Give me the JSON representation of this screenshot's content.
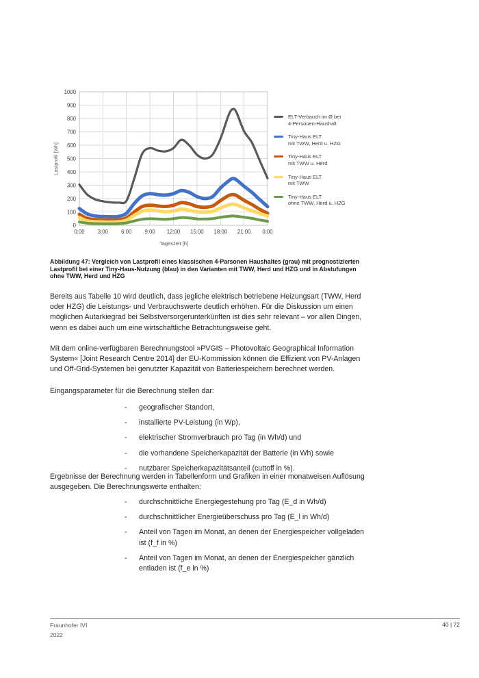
{
  "document": {
    "figure_caption": "Abbildung 47: Vergleich von Lastprofil eines klassischen 4-Parsonen Haushaltes (grau) mit prognostizierten Lastprofil bei einer Tiny-Haus-Nutzung (blau) in den Varianten mit TWW, Herd und HZG und in Abstufungen ohne TWW, Herd und HZG",
    "paragraphs": {
      "p1": "Bereits aus Tabelle 10 wird deutlich, dass jegliche elektrisch betriebene Heizungsart (TWW, Herd oder HZG) die Leistungs- und Verbrauchswerte deutlich erhöhen. Für die Diskussion um einen möglichen Autarkiegrad bei Selbstversorgerunterkünften ist dies sehr relevant – vor allen Dingen, wenn es dabei auch um eine wirtschaftliche Betrachtungsweise geht.",
      "p2": "Mit dem online-verfügbaren Berechnungstool »PVGIS – Photovoltaic Geographical Information System« [Joint Research Centre 2014] der EU-Kommission können die Effizient von PV-Anlagen und Off-Grid-Systemen bei genutzter Kapazität von Batteriespeichern berechnet werden.",
      "p3": "Eingangsparameter für die Berechnung stellen dar:",
      "p4": "Ergebnisse der Berechnung werden in Tabellenform und Grafiken in einer monatweisen Auflösung ausgegeben. Die Berechnungswerte enthalten:"
    },
    "bullet_marker": "-",
    "bullet_list_1": [
      "geografischer Standort,",
      "installierte PV-Leistung (in Wp),",
      "elektrischer Stromverbrauch pro Tag (in Wh/d) und",
      "die vorhandene Speicherkapazität der Batterie (in Wh) sowie",
      "nutzbarer Speicherkapazitätsanteil (cuttoff in %)."
    ],
    "bullet_list_2": [
      "durchschnittliche Energiegestehung pro Tag (E_d in Wh/d)",
      "durchschnittlicher Energieüberschuss pro Tag (E_l in Wh/d)",
      "Anteil von Tagen im Monat, an denen der Energiespeicher vollgeladen ist (f_f in %)",
      "Anteil von Tagen im Monat, an denen der Energiespeicher gänzlich entladen ist (f_e in %)"
    ],
    "footer": {
      "org": "Fraunhofer IVI",
      "year": "2022",
      "page_number": "40 | 72"
    }
  },
  "chart_data": {
    "type": "line",
    "title": "",
    "xlabel": "Tageszeit [h]",
    "ylabel": "Lastprofil [Wh]",
    "ylim": [
      0,
      1000
    ],
    "ytick_step": 100,
    "grid": true,
    "legend_position": "right",
    "x_hours": [
      0,
      1,
      2,
      3,
      4,
      5,
      6,
      7,
      8,
      9,
      10,
      11,
      12,
      13,
      14,
      15,
      16,
      17,
      18,
      19,
      19.5,
      20,
      21,
      22,
      23,
      24
    ],
    "xtick_hours": [
      0,
      3,
      6,
      9,
      12,
      15,
      18,
      21,
      24
    ],
    "xtick_labels": [
      "0:00",
      "3:00",
      "6:00",
      "9:00",
      "12:00",
      "15:00",
      "18:00",
      "21:00",
      "0:00"
    ],
    "series": [
      {
        "name": "ELT-Verbauch im Ø bei 4-Personen-Haushalt",
        "legend_lines": [
          "ELT-Verbauch im Ø bei",
          "4-Personen-Haushalt"
        ],
        "color": "#595959",
        "line_width": 3.2,
        "values": [
          305,
          230,
          195,
          180,
          172,
          170,
          183,
          350,
          535,
          578,
          560,
          554,
          578,
          640,
          600,
          528,
          500,
          530,
          650,
          820,
          868,
          850,
          705,
          620,
          485,
          352
        ]
      },
      {
        "name": "Tiny-Haus ELT mit TWW, Herd u. HZG",
        "legend_lines": [
          "Tiny-Haus ELT",
          "mit TWW, Herd u. HZG"
        ],
        "color": "#4472C4",
        "line_width": 5,
        "values": [
          125,
          85,
          70,
          65,
          64,
          66,
          90,
          163,
          220,
          237,
          230,
          226,
          237,
          260,
          247,
          215,
          200,
          215,
          280,
          330,
          350,
          342,
          293,
          247,
          193,
          140
        ]
      },
      {
        "name": "Tiny-Haus ELT mit TWW u. Herd",
        "legend_lines": [
          "Tiny-Haus ELT",
          "mit TWW u. Herd"
        ],
        "color": "#C55A11",
        "line_width": 5,
        "values": [
          82,
          52,
          43,
          39,
          38,
          40,
          55,
          100,
          140,
          151,
          145,
          141,
          150,
          170,
          161,
          141,
          135,
          145,
          185,
          222,
          230,
          224,
          187,
          156,
          120,
          90
        ]
      },
      {
        "name": "Tiny-Haus ELT mit TWW",
        "legend_lines": [
          "Tiny-Haus ELT",
          "mit TWW"
        ],
        "color": "#FFD966",
        "line_width": 5,
        "values": [
          58,
          33,
          27,
          25,
          24,
          26,
          38,
          75,
          105,
          115,
          108,
          101,
          108,
          121,
          113,
          101,
          98,
          105,
          130,
          152,
          159,
          154,
          131,
          110,
          88,
          70
        ]
      },
      {
        "name": "Tiny-Haus ELT ohne TWW, Herd u. HZG",
        "legend_lines": [
          "Tiny-Haus ELT",
          "ohne TWW, Herd u. HZG"
        ],
        "color": "#6C9B4C",
        "line_width": 4,
        "values": [
          25,
          16,
          13,
          12,
          12,
          13,
          18,
          33,
          45,
          50,
          47,
          45,
          50,
          58,
          55,
          48,
          47,
          50,
          60,
          67,
          70,
          68,
          61,
          52,
          40,
          30
        ]
      }
    ]
  }
}
